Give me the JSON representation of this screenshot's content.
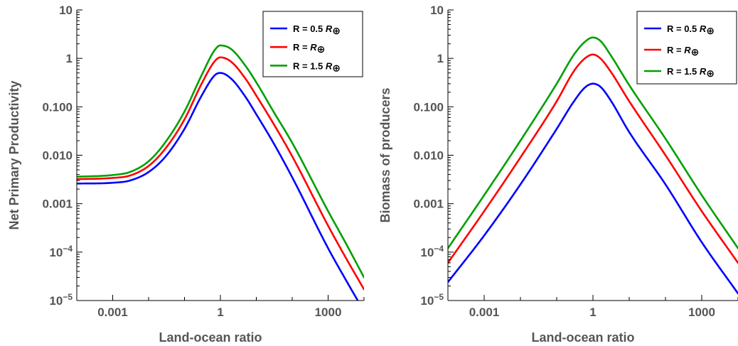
{
  "chart_data": [
    {
      "type": "line",
      "title": "",
      "xlabel": "Land-ocean ratio",
      "ylabel": "Net Primary Productivity",
      "xscale": "log",
      "yscale": "log",
      "xlim": [
        0.0001,
        10000
      ],
      "ylim": [
        1e-05,
        10
      ],
      "x_ticks": [
        {
          "value": 0.001,
          "label": "0.001"
        },
        {
          "value": 1,
          "label": "1"
        },
        {
          "value": 1000,
          "label": "1000"
        }
      ],
      "y_ticks": [
        {
          "value": 10,
          "label": "10"
        },
        {
          "value": 1,
          "label": "1"
        },
        {
          "value": 0.1,
          "label": "0.100"
        },
        {
          "value": 0.01,
          "label": "0.010"
        },
        {
          "value": 0.001,
          "label": "0.001"
        },
        {
          "value": 0.0001,
          "base": "10",
          "exp": "−4"
        },
        {
          "value": 1e-05,
          "base": "10",
          "exp": "−5"
        }
      ],
      "legend_position": "top-right",
      "series": [
        {
          "name": "R = 0.5 R⊕",
          "legend_prefix": "R =  0.5 ",
          "legend_symbol": "R",
          "legend_sub": "⊕",
          "color": "#0000ff",
          "x": [
            0.0001,
            0.001,
            0.003,
            0.01,
            0.03,
            0.1,
            0.3,
            0.7,
            1,
            2,
            5,
            10,
            30,
            100,
            1000,
            3000,
            10000
          ],
          "y": [
            0.0026,
            0.0027,
            0.003,
            0.0045,
            0.0095,
            0.035,
            0.17,
            0.45,
            0.5,
            0.38,
            0.16,
            0.07,
            0.018,
            0.0035,
            0.00012,
            2.8e-05,
            6e-06
          ]
        },
        {
          "name": "R = R⊕",
          "legend_prefix": "R =  ",
          "legend_symbol": "R",
          "legend_sub": "⊕",
          "color": "#ff0000",
          "x": [
            0.0001,
            0.001,
            0.003,
            0.01,
            0.03,
            0.1,
            0.3,
            0.7,
            1,
            2,
            5,
            10,
            30,
            100,
            1000,
            3000,
            10000
          ],
          "y": [
            0.0032,
            0.0034,
            0.0038,
            0.006,
            0.014,
            0.055,
            0.3,
            0.88,
            1.05,
            0.85,
            0.38,
            0.17,
            0.045,
            0.0095,
            0.00035,
            8e-05,
            1.7e-05
          ]
        },
        {
          "name": "R = 1.5 R⊕",
          "legend_prefix": "R =  1.5 ",
          "legend_symbol": "R",
          "legend_sub": "⊕",
          "color": "#00a000",
          "x": [
            0.0001,
            0.001,
            0.003,
            0.01,
            0.03,
            0.1,
            0.3,
            0.7,
            1,
            2,
            5,
            10,
            30,
            100,
            1000,
            3000,
            10000
          ],
          "y": [
            0.0036,
            0.0039,
            0.0045,
            0.0075,
            0.019,
            0.08,
            0.45,
            1.5,
            1.85,
            1.55,
            0.7,
            0.32,
            0.08,
            0.018,
            0.0007,
            0.00016,
            3e-05
          ]
        }
      ]
    },
    {
      "type": "line",
      "title": "",
      "xlabel": "Land-ocean ratio",
      "ylabel": "Biomass of producers",
      "xscale": "log",
      "yscale": "log",
      "xlim": [
        0.0001,
        10000
      ],
      "ylim": [
        1e-05,
        10
      ],
      "x_ticks": [
        {
          "value": 0.001,
          "label": "0.001"
        },
        {
          "value": 1,
          "label": "1"
        },
        {
          "value": 1000,
          "label": "1000"
        }
      ],
      "y_ticks": [
        {
          "value": 10,
          "label": "10"
        },
        {
          "value": 1,
          "label": "1"
        },
        {
          "value": 0.1,
          "label": "0.100"
        },
        {
          "value": 0.01,
          "label": "0.010"
        },
        {
          "value": 0.001,
          "label": "0.001"
        },
        {
          "value": 0.0001,
          "base": "10",
          "exp": "−4"
        },
        {
          "value": 1e-05,
          "base": "10",
          "exp": "−5"
        }
      ],
      "legend_position": "top-right",
      "series": [
        {
          "name": "R = 0.5 R⊕",
          "legend_prefix": "R =  0.5 ",
          "legend_symbol": "R",
          "legend_sub": "⊕",
          "color": "#0000ff",
          "x": [
            0.0001,
            0.001,
            0.01,
            0.1,
            0.3,
            0.6,
            1,
            1.6,
            3,
            10,
            100,
            1000,
            10000
          ],
          "y": [
            2.4e-05,
            0.00022,
            0.0025,
            0.035,
            0.13,
            0.25,
            0.3,
            0.26,
            0.14,
            0.03,
            0.0025,
            0.00016,
            1.4e-05
          ]
        },
        {
          "name": "R = R⊕",
          "legend_prefix": "R =  ",
          "legend_symbol": "R",
          "legend_sub": "⊕",
          "color": "#ff0000",
          "x": [
            0.0001,
            0.001,
            0.01,
            0.1,
            0.3,
            0.6,
            1,
            1.6,
            3,
            10,
            100,
            1000,
            10000
          ],
          "y": [
            6e-05,
            0.0007,
            0.009,
            0.13,
            0.55,
            1.0,
            1.2,
            1.0,
            0.55,
            0.13,
            0.01,
            0.0007,
            6e-05
          ]
        },
        {
          "name": "R = 1.5 R⊕",
          "legend_prefix": "R =  1.5 ",
          "legend_symbol": "R",
          "legend_sub": "⊕",
          "color": "#00a000",
          "x": [
            0.0001,
            0.001,
            0.01,
            0.1,
            0.3,
            0.6,
            1,
            1.6,
            3,
            10,
            100,
            1000,
            10000
          ],
          "y": [
            0.00012,
            0.0015,
            0.02,
            0.3,
            1.2,
            2.2,
            2.7,
            2.3,
            1.2,
            0.28,
            0.022,
            0.0015,
            0.00012
          ]
        }
      ]
    }
  ]
}
